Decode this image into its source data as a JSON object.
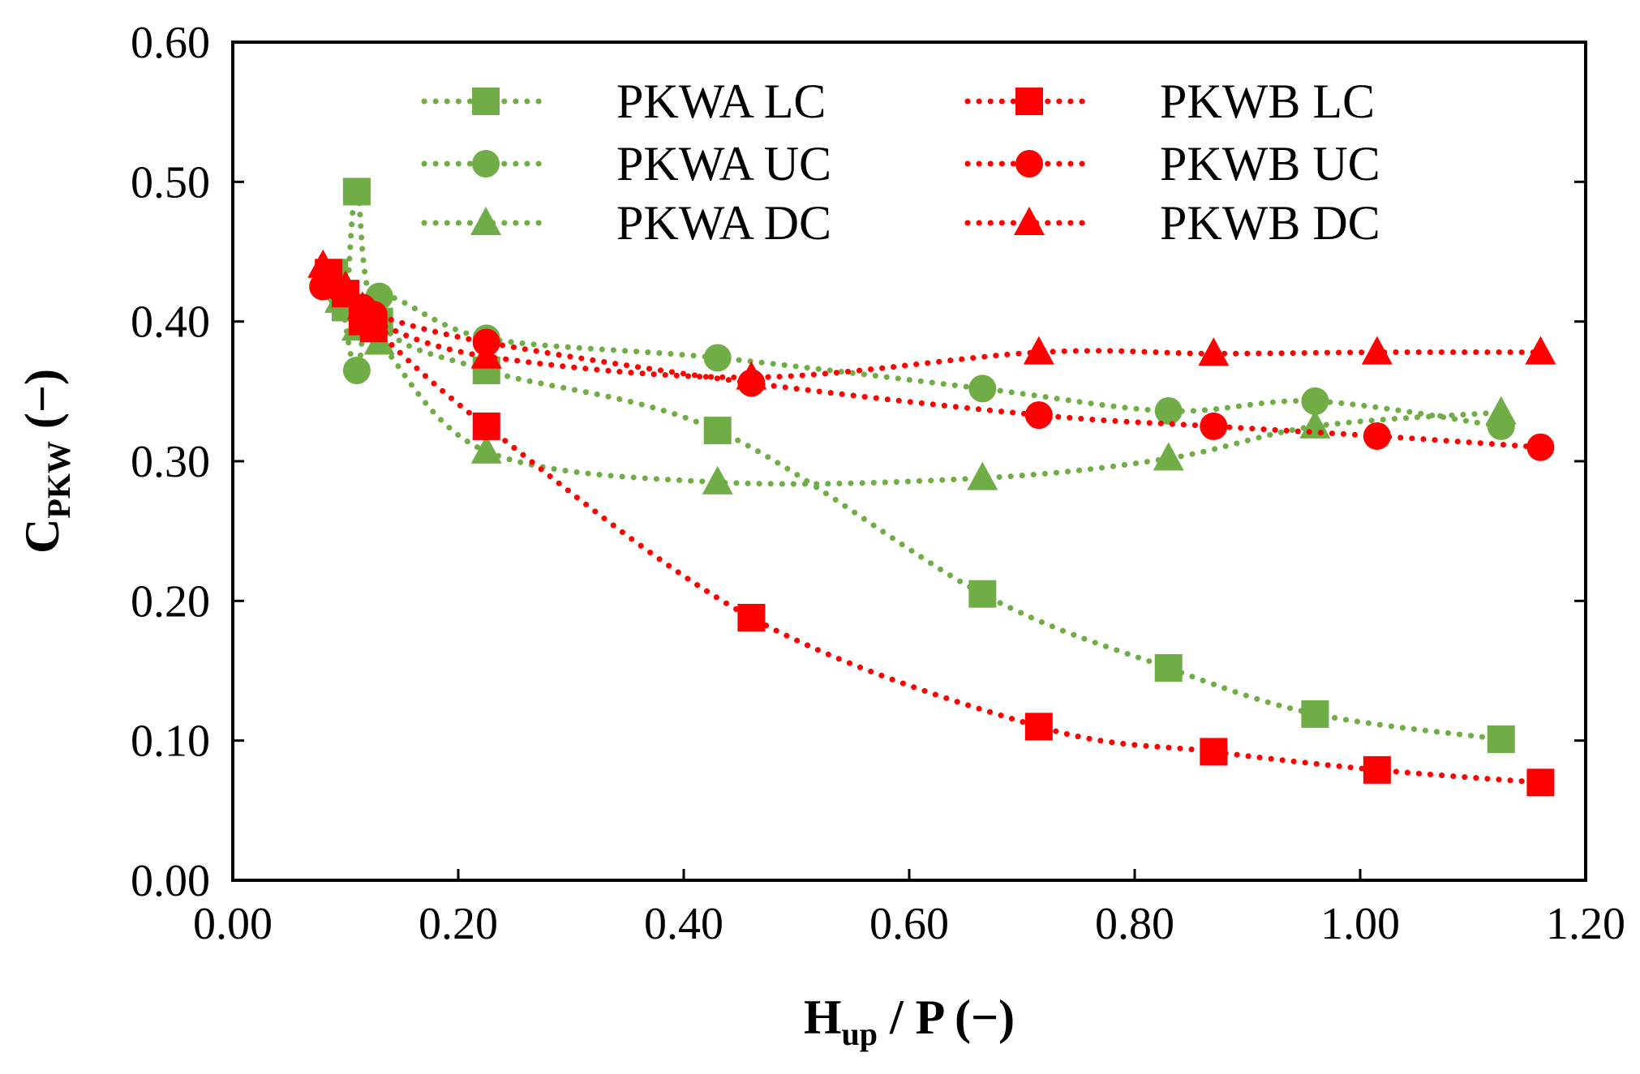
{
  "chart_data": {
    "type": "line",
    "title": "",
    "xlabel": {
      "main": "H",
      "sub": "up",
      "rest": " / P (−)"
    },
    "ylabel": {
      "main": "C",
      "sub": "PKW",
      "rest": " (−)"
    },
    "xlim": [
      0,
      1.2
    ],
    "ylim": [
      0,
      0.6
    ],
    "xticks": [
      "0.00",
      "0.20",
      "0.40",
      "0.60",
      "0.80",
      "1.00",
      "1.20"
    ],
    "yticks": [
      "0.00",
      "0.10",
      "0.20",
      "0.30",
      "0.40",
      "0.50",
      "0.60"
    ],
    "grid": false,
    "legend_position": "top",
    "line_style": "dotted",
    "series": [
      {
        "name": "PKWA LC",
        "color": "#70AD47",
        "marker": "square",
        "x": [
          0.09,
          0.1,
          0.11,
          0.13,
          0.225,
          0.43,
          0.665,
          0.83,
          0.96,
          1.125
        ],
        "y": [
          0.435,
          0.41,
          0.493,
          0.4,
          0.365,
          0.322,
          0.205,
          0.152,
          0.119,
          0.101
        ]
      },
      {
        "name": "PKWA UC",
        "color": "#70AD47",
        "marker": "circle",
        "x": [
          0.085,
          0.095,
          0.11,
          0.13,
          0.225,
          0.43,
          0.665,
          0.83,
          0.96,
          1.125
        ],
        "y": [
          0.43,
          0.42,
          0.365,
          0.418,
          0.388,
          0.374,
          0.352,
          0.336,
          0.343,
          0.325
        ]
      },
      {
        "name": "PKWA DC",
        "color": "#70AD47",
        "marker": "triangle",
        "x": [
          0.085,
          0.095,
          0.11,
          0.13,
          0.225,
          0.43,
          0.665,
          0.83,
          0.96,
          1.125
        ],
        "y": [
          0.43,
          0.415,
          0.395,
          0.385,
          0.307,
          0.285,
          0.288,
          0.302,
          0.325,
          0.335
        ]
      },
      {
        "name": "PKWB LC",
        "color": "#FF0000",
        "marker": "square",
        "x": [
          0.085,
          0.1,
          0.115,
          0.125,
          0.225,
          0.46,
          0.715,
          0.87,
          1.015,
          1.16
        ],
        "y": [
          0.435,
          0.42,
          0.4,
          0.395,
          0.325,
          0.188,
          0.11,
          0.092,
          0.079,
          0.07
        ]
      },
      {
        "name": "PKWB UC",
        "color": "#FF0000",
        "marker": "circle",
        "x": [
          0.08,
          0.1,
          0.115,
          0.125,
          0.225,
          0.46,
          0.715,
          0.87,
          1.015,
          1.16
        ],
        "y": [
          0.425,
          0.42,
          0.41,
          0.405,
          0.385,
          0.356,
          0.333,
          0.325,
          0.318,
          0.31
        ]
      },
      {
        "name": "PKWB DC",
        "color": "#FF0000",
        "marker": "triangle",
        "x": [
          0.08,
          0.1,
          0.115,
          0.125,
          0.225,
          0.46,
          0.715,
          0.87,
          1.015,
          1.16
        ],
        "y": [
          0.44,
          0.425,
          0.41,
          0.4,
          0.375,
          0.36,
          0.378,
          0.377,
          0.378,
          0.378
        ]
      }
    ]
  }
}
